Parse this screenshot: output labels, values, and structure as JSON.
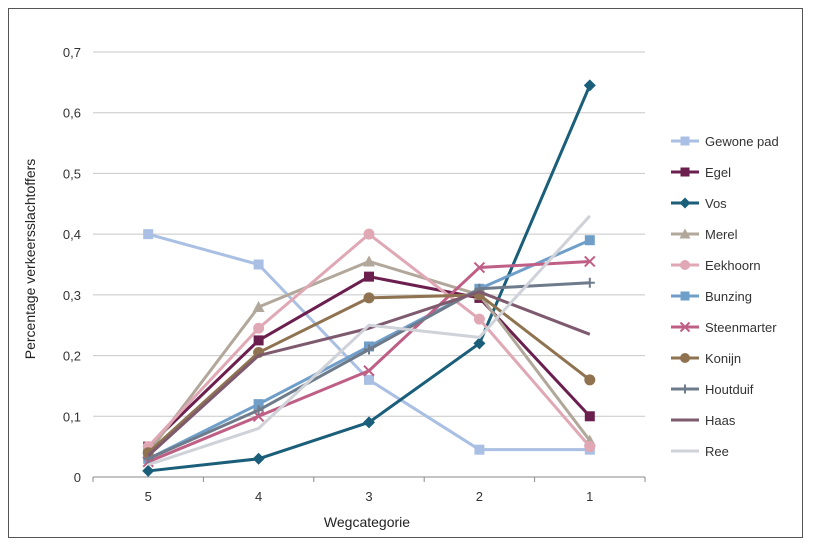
{
  "chart_data": {
    "type": "line",
    "title": "",
    "xlabel": "Wegcategorie",
    "ylabel": "Percentage verkeersslachtoffers",
    "categories": [
      "5",
      "4",
      "3",
      "2",
      "1"
    ],
    "ylim": [
      0,
      0.7
    ],
    "yticks": [
      "0",
      "0,1",
      "0,2",
      "0,3",
      "0,4",
      "0,5",
      "0,6",
      "0,7"
    ],
    "grid": true,
    "legend_position": "right",
    "series": [
      {
        "name": "Gewone pad",
        "color": "#a9bfe3",
        "marker": "square",
        "values": [
          0.4,
          0.35,
          0.16,
          0.045,
          0.045
        ]
      },
      {
        "name": "Egel",
        "color": "#6b1f4e",
        "marker": "square",
        "values": [
          0.05,
          0.225,
          0.33,
          0.295,
          0.1
        ]
      },
      {
        "name": "Vos",
        "color": "#1a5e7a",
        "marker": "diamond",
        "values": [
          0.01,
          0.03,
          0.09,
          0.22,
          0.645
        ]
      },
      {
        "name": "Merel",
        "color": "#b1a79a",
        "marker": "triangle",
        "values": [
          0.04,
          0.28,
          0.355,
          0.3,
          0.06
        ]
      },
      {
        "name": "Eekhoorn",
        "color": "#e0a8b5",
        "marker": "circle",
        "values": [
          0.05,
          0.245,
          0.4,
          0.26,
          0.05
        ]
      },
      {
        "name": "Bunzing",
        "color": "#6f9fc9",
        "marker": "square",
        "values": [
          0.03,
          0.12,
          0.215,
          0.31,
          0.39
        ]
      },
      {
        "name": "Steenmarter",
        "color": "#c05f86",
        "marker": "x",
        "values": [
          0.025,
          0.1,
          0.175,
          0.345,
          0.355
        ]
      },
      {
        "name": "Konijn",
        "color": "#8f7350",
        "marker": "circle",
        "values": [
          0.04,
          0.205,
          0.295,
          0.3,
          0.16
        ]
      },
      {
        "name": "Houtduif",
        "color": "#6e7b8b",
        "marker": "plus",
        "values": [
          0.03,
          0.11,
          0.21,
          0.31,
          0.32
        ]
      },
      {
        "name": "Haas",
        "color": "#7e5a6f",
        "marker": "none",
        "values": [
          0.035,
          0.2,
          0.245,
          0.305,
          0.235
        ]
      },
      {
        "name": "Ree",
        "color": "#cfd2d8",
        "marker": "none",
        "values": [
          0.02,
          0.08,
          0.25,
          0.23,
          0.43
        ]
      }
    ]
  }
}
